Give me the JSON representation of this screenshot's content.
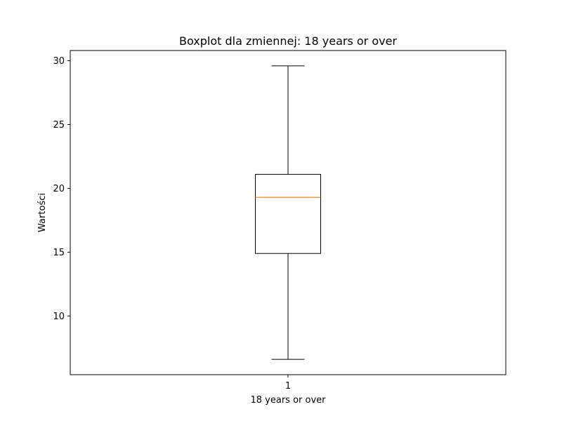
{
  "chart_data": {
    "type": "boxplot",
    "title": "Boxplot dla zmiennej: 18 years or over",
    "xlabel": "18 years or over",
    "ylabel": "Wartości",
    "categories": [
      "1"
    ],
    "ylim": [
      5.4,
      30.8
    ],
    "yticks": [
      10,
      15,
      20,
      25,
      30
    ],
    "grid": false,
    "series": [
      {
        "whisker_low": 6.6,
        "q1": 14.9,
        "median": 19.3,
        "q3": 21.1,
        "whisker_high": 29.6
      }
    ],
    "colors": {
      "box": "#000000",
      "median": "#ff7f0e",
      "axes": "#000000",
      "background": "#ffffff"
    }
  }
}
